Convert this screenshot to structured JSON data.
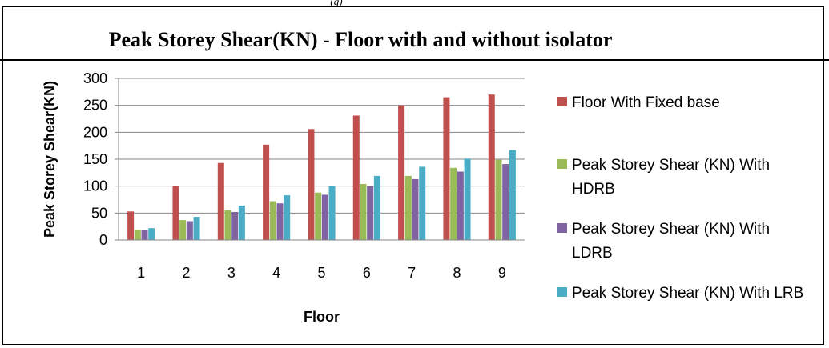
{
  "caption": "(g)",
  "chart_data": {
    "type": "bar",
    "title": "Peak Storey Shear(KN) - Floor with and without isolator",
    "xlabel": "Floor",
    "ylabel": "Peak Storey Shear(KN)",
    "ylim": [
      0,
      300
    ],
    "yticks": [
      0,
      50,
      100,
      150,
      200,
      250,
      300
    ],
    "grid": true,
    "legend_position": "right",
    "categories": [
      "1",
      "2",
      "3",
      "4",
      "5",
      "6",
      "7",
      "8",
      "9"
    ],
    "series": [
      {
        "name": "Floor With Fixed base",
        "color": "#c0504d",
        "values": [
          53,
          101,
          143,
          177,
          206,
          231,
          250,
          265,
          270
        ]
      },
      {
        "name": "Peak Storey Shear (KN) With HDRB",
        "color": "#9bbb59",
        "values": [
          19,
          37,
          55,
          72,
          88,
          104,
          119,
          134,
          149
        ]
      },
      {
        "name": "Peak Storey Shear (KN) With LDRB",
        "color": "#8064a2",
        "values": [
          18,
          35,
          52,
          68,
          84,
          100,
          113,
          127,
          141
        ]
      },
      {
        "name": "Peak Storey Shear (KN) With LRB",
        "color": "#4bacc6",
        "values": [
          22,
          43,
          64,
          83,
          101,
          119,
          136,
          151,
          167
        ]
      }
    ]
  }
}
